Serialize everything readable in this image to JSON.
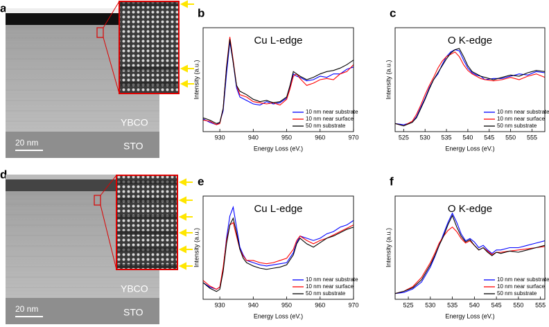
{
  "images": [
    {
      "panel": "a",
      "material_labels": [
        "YBCO",
        "STO"
      ],
      "scale_bar": "20 nm"
    },
    {
      "panel": "d",
      "material_labels": [
        "YBCO",
        "STO"
      ],
      "scale_bar": "20 nm"
    }
  ],
  "chart_data": [
    {
      "type": "line",
      "panel": "b",
      "title": "Cu L-edge",
      "x_label": "Energy Loss (eV.)",
      "y_label": "Intensity (a.u.)",
      "xlim": [
        925,
        970
      ],
      "xticks": [
        930,
        940,
        950,
        960,
        970
      ],
      "ylim": [
        0.1,
        1.0
      ],
      "legend": "lower right",
      "x": [
        925,
        927,
        929,
        930,
        931,
        932,
        933,
        934,
        935,
        936,
        938,
        940,
        942,
        944,
        946,
        948,
        950,
        951,
        952,
        953,
        954,
        956,
        958,
        960,
        962,
        964,
        966,
        968,
        970
      ],
      "series": [
        {
          "name": "10 nm near substrate",
          "color": "#0000ff",
          "values": [
            0.21,
            0.18,
            0.16,
            0.18,
            0.28,
            0.6,
            0.88,
            0.7,
            0.48,
            0.4,
            0.37,
            0.34,
            0.33,
            0.36,
            0.34,
            0.35,
            0.39,
            0.48,
            0.6,
            0.58,
            0.57,
            0.54,
            0.55,
            0.58,
            0.57,
            0.6,
            0.6,
            0.64,
            0.66
          ]
        },
        {
          "name": "10 nm near surface",
          "color": "#ff0000",
          "values": [
            0.2,
            0.19,
            0.16,
            0.17,
            0.3,
            0.66,
            0.92,
            0.72,
            0.5,
            0.42,
            0.4,
            0.36,
            0.35,
            0.34,
            0.35,
            0.33,
            0.38,
            0.47,
            0.58,
            0.6,
            0.56,
            0.5,
            0.52,
            0.55,
            0.56,
            0.55,
            0.6,
            0.62,
            0.68
          ]
        },
        {
          "name": "50 nm substrate",
          "color": "#000000",
          "values": [
            0.22,
            0.2,
            0.17,
            0.18,
            0.3,
            0.65,
            0.9,
            0.7,
            0.5,
            0.45,
            0.42,
            0.38,
            0.36,
            0.37,
            0.35,
            0.36,
            0.4,
            0.5,
            0.62,
            0.6,
            0.58,
            0.55,
            0.57,
            0.6,
            0.62,
            0.63,
            0.65,
            0.68,
            0.72
          ]
        }
      ]
    },
    {
      "type": "line",
      "panel": "c",
      "title": "O K-edge",
      "x_label": "Energy Loss (eV.)",
      "y_label": "Intensity (a.u.)",
      "xlim": [
        523,
        558
      ],
      "xticks": [
        525,
        530,
        535,
        540,
        545,
        550,
        555
      ],
      "ylim": [
        0.05,
        0.95
      ],
      "legend": "lower right",
      "x": [
        523,
        525,
        527,
        528,
        529,
        530,
        531,
        532,
        533,
        534,
        535,
        536,
        537,
        538,
        539,
        540,
        541,
        542,
        543,
        544,
        546,
        548,
        550,
        552,
        554,
        556,
        558
      ],
      "series": [
        {
          "name": "10 nm near substrate",
          "color": "#0000ff",
          "values": [
            0.12,
            0.11,
            0.13,
            0.18,
            0.26,
            0.34,
            0.43,
            0.5,
            0.55,
            0.63,
            0.7,
            0.74,
            0.76,
            0.75,
            0.67,
            0.6,
            0.56,
            0.54,
            0.53,
            0.5,
            0.51,
            0.51,
            0.53,
            0.55,
            0.54,
            0.57,
            0.56
          ]
        },
        {
          "name": "10 nm near surface",
          "color": "#ff0000",
          "values": [
            0.12,
            0.1,
            0.14,
            0.2,
            0.28,
            0.37,
            0.45,
            0.52,
            0.6,
            0.66,
            0.7,
            0.72,
            0.74,
            0.7,
            0.63,
            0.58,
            0.55,
            0.53,
            0.51,
            0.5,
            0.49,
            0.5,
            0.52,
            0.5,
            0.53,
            0.55,
            0.52
          ]
        },
        {
          "name": "50 nm substrate",
          "color": "#000000",
          "values": [
            0.12,
            0.1,
            0.13,
            0.17,
            0.25,
            0.33,
            0.42,
            0.5,
            0.56,
            0.62,
            0.68,
            0.73,
            0.76,
            0.77,
            0.7,
            0.62,
            0.57,
            0.55,
            0.53,
            0.52,
            0.5,
            0.52,
            0.54,
            0.53,
            0.56,
            0.58,
            0.57
          ]
        }
      ]
    },
    {
      "type": "line",
      "panel": "e",
      "title": "Cu L-edge",
      "x_label": "Energy Loss (eV.)",
      "y_label": "Intensity (a.u.)",
      "xlim": [
        925,
        970
      ],
      "xticks": [
        930,
        940,
        950,
        960,
        970
      ],
      "ylim": [
        0.05,
        0.98
      ],
      "legend": "lower right",
      "x": [
        925,
        927,
        929,
        930,
        931,
        932,
        933,
        934,
        935,
        936,
        937,
        938,
        940,
        942,
        944,
        946,
        948,
        950,
        952,
        953,
        954,
        956,
        958,
        960,
        962,
        964,
        966,
        968,
        970
      ],
      "series": [
        {
          "name": "10 nm near substrate",
          "color": "#0000ff",
          "values": [
            0.2,
            0.16,
            0.14,
            0.16,
            0.32,
            0.6,
            0.8,
            0.88,
            0.7,
            0.52,
            0.45,
            0.4,
            0.38,
            0.36,
            0.35,
            0.36,
            0.37,
            0.38,
            0.47,
            0.56,
            0.62,
            0.6,
            0.58,
            0.6,
            0.64,
            0.66,
            0.7,
            0.72,
            0.76
          ]
        },
        {
          "name": "10 nm near surface",
          "color": "#ff0000",
          "values": [
            0.22,
            0.17,
            0.14,
            0.16,
            0.34,
            0.58,
            0.72,
            0.74,
            0.62,
            0.5,
            0.44,
            0.4,
            0.4,
            0.38,
            0.37,
            0.38,
            0.4,
            0.42,
            0.5,
            0.58,
            0.62,
            0.58,
            0.55,
            0.58,
            0.6,
            0.63,
            0.66,
            0.69,
            0.72
          ]
        },
        {
          "name": "50 nm substrate",
          "color": "#000000",
          "values": [
            0.2,
            0.15,
            0.12,
            0.14,
            0.3,
            0.55,
            0.72,
            0.78,
            0.65,
            0.5,
            0.42,
            0.38,
            0.35,
            0.33,
            0.32,
            0.33,
            0.34,
            0.36,
            0.45,
            0.55,
            0.6,
            0.55,
            0.52,
            0.56,
            0.6,
            0.62,
            0.65,
            0.68,
            0.7
          ]
        }
      ]
    },
    {
      "type": "line",
      "panel": "f",
      "title": "O K-edge",
      "x_label": "Energy Loss (eV.)",
      "y_label": "Intensity (a.u.)",
      "xlim": [
        522,
        556
      ],
      "xticks": [
        525,
        530,
        535,
        540,
        545,
        550,
        555
      ],
      "ylim": [
        0.05,
        0.95
      ],
      "legend": "lower right",
      "x": [
        522,
        524,
        526,
        528,
        530,
        531,
        532,
        533,
        534,
        535,
        536,
        537,
        538,
        539,
        540,
        541,
        542,
        543,
        544,
        545,
        546,
        548,
        550,
        552,
        554,
        556
      ],
      "series": [
        {
          "name": "10 nm near substrate",
          "color": "#0000ff",
          "values": [
            0.1,
            0.11,
            0.14,
            0.2,
            0.33,
            0.42,
            0.52,
            0.62,
            0.72,
            0.8,
            0.72,
            0.62,
            0.56,
            0.58,
            0.55,
            0.5,
            0.52,
            0.48,
            0.45,
            0.48,
            0.48,
            0.5,
            0.5,
            0.52,
            0.54,
            0.56
          ]
        },
        {
          "name": "10 nm near surface",
          "color": "#ff0000",
          "values": [
            0.1,
            0.12,
            0.16,
            0.24,
            0.37,
            0.45,
            0.54,
            0.6,
            0.65,
            0.68,
            0.64,
            0.58,
            0.54,
            0.56,
            0.52,
            0.48,
            0.5,
            0.47,
            0.44,
            0.46,
            0.46,
            0.47,
            0.48,
            0.49,
            0.5,
            0.51
          ]
        },
        {
          "name": "50 nm substrate",
          "color": "#000000",
          "values": [
            0.1,
            0.12,
            0.15,
            0.22,
            0.35,
            0.43,
            0.52,
            0.6,
            0.7,
            0.78,
            0.68,
            0.6,
            0.55,
            0.57,
            0.52,
            0.48,
            0.5,
            0.46,
            0.43,
            0.46,
            0.45,
            0.47,
            0.46,
            0.48,
            0.5,
            0.52
          ]
        }
      ]
    }
  ]
}
